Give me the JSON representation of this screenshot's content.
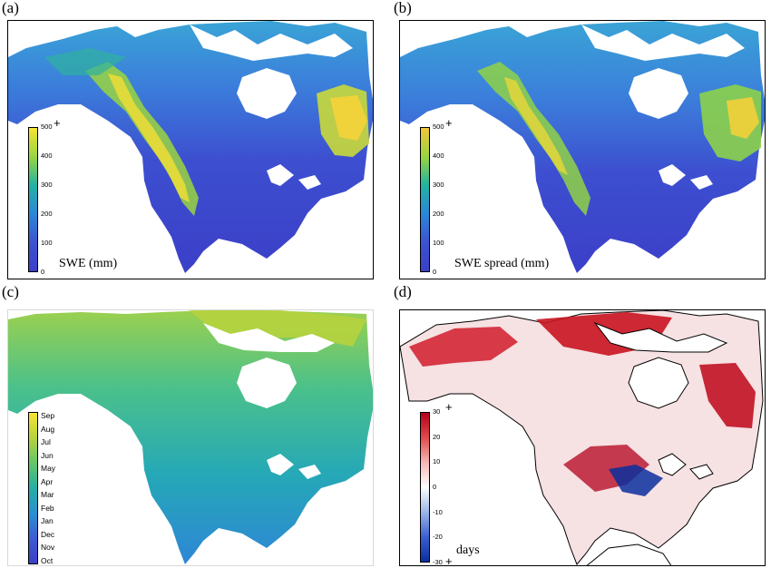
{
  "panels": {
    "a": {
      "label": "(a)",
      "colorbar_ticks": [
        "500",
        "400",
        "300",
        "200",
        "100",
        "0"
      ],
      "colorbar_plus": "+",
      "unit": "SWE (mm)",
      "range": [
        0,
        500
      ]
    },
    "b": {
      "label": "(b)",
      "colorbar_ticks": [
        "500",
        "400",
        "300",
        "200",
        "100",
        "0"
      ],
      "colorbar_plus": "+",
      "unit": "SWE spread (mm)",
      "range": [
        0,
        500
      ]
    },
    "c": {
      "label": "(c)",
      "colorbar_ticks": [
        "Sep",
        "Aug",
        "Jul",
        "Jun",
        "May",
        "Apr",
        "Mar",
        "Feb",
        "Jan",
        "Dec",
        "Nov",
        "Oct"
      ]
    },
    "d": {
      "label": "(d)",
      "colorbar_ticks": [
        "30",
        "20",
        "10",
        "0",
        "-10",
        "-20",
        "-30"
      ],
      "colorbar_plus_top": "+",
      "colorbar_plus_bottom": "+",
      "unit": "days",
      "range": [
        -30,
        30
      ]
    }
  },
  "colors": {
    "viridis_low": "#3b3fc8",
    "viridis_mid": "#21b3a3",
    "viridis_high": "#f6e434",
    "diverging_low": "#0a2f9e",
    "diverging_mid": "#ffffff",
    "diverging_high": "#b3001b"
  }
}
